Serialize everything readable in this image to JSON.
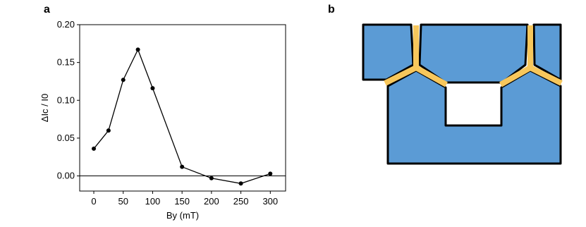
{
  "panels": [
    "a",
    "b"
  ],
  "chart_data": {
    "type": "line",
    "xlabel": "By (mT)",
    "ylabel": "ΔIc / I0",
    "x": [
      0,
      25,
      50,
      75,
      100,
      150,
      200,
      250,
      300
    ],
    "series": [
      {
        "name": "ΔIc / I0",
        "color": "#000000",
        "values": [
          0.036,
          0.06,
          0.127,
          0.167,
          0.116,
          0.012,
          -0.003,
          -0.01,
          0.003
        ]
      }
    ],
    "xlim": [
      -24,
      326
    ],
    "ylim": [
      -0.02,
      0.2
    ],
    "xticks": [
      0,
      50,
      100,
      150,
      200,
      250,
      300
    ],
    "yticks": [
      {
        "value": 0,
        "label": "0.00"
      },
      {
        "value": 0.05,
        "label": "0.05"
      },
      {
        "value": 0.1,
        "label": "0.10"
      },
      {
        "value": 0.15,
        "label": "0.15"
      },
      {
        "value": 0.2,
        "label": "0.20"
      }
    ],
    "reference_line": 0
  }
}
